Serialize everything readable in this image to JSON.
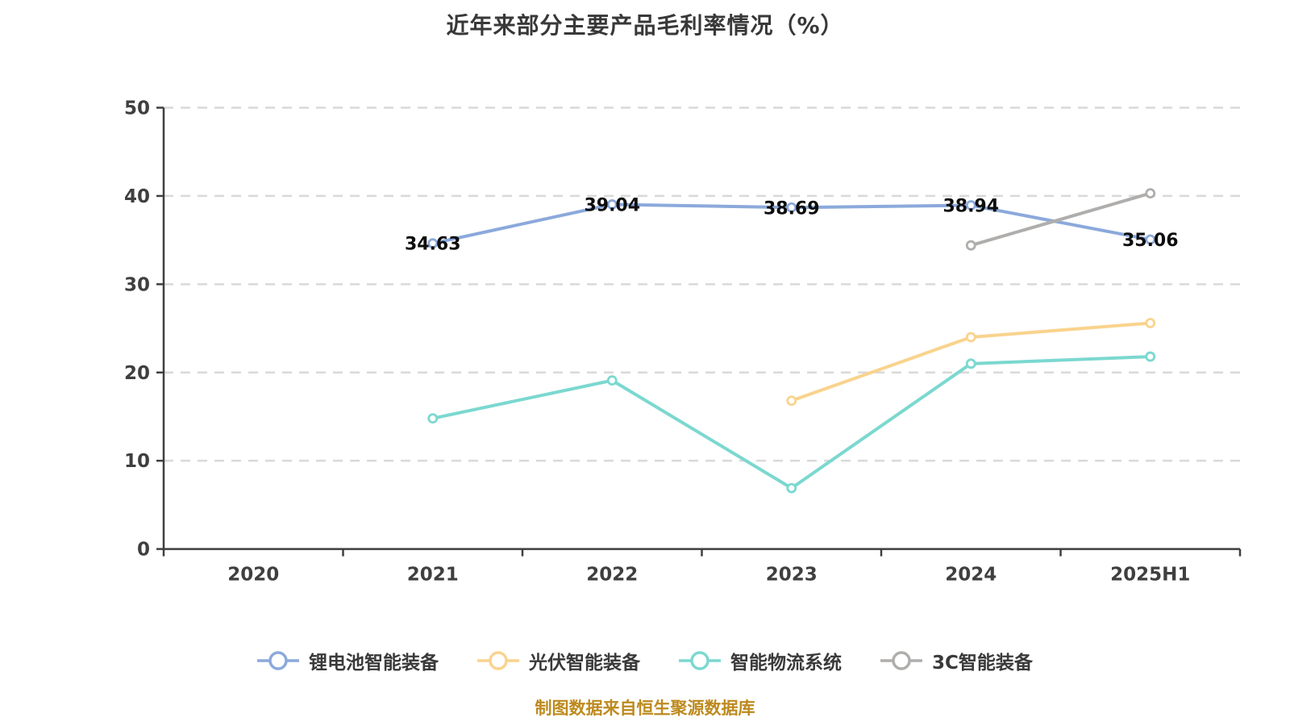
{
  "title": "近年来部分主要产品毛利率情况（%）",
  "footer": "制图数据来自恒生聚源数据库",
  "colors": {
    "series_blue": "#8BA9DB",
    "series_yellow": "#F9D38D",
    "series_teal": "#7BD8D0",
    "series_gray": "#AFAEAC",
    "grid": "#D9D9D9",
    "axis": "#3F3F3F",
    "tick_label": "#3F3F3F",
    "data_label": "#0d0d0d",
    "marker_fill": "#ffffff",
    "title_color": "#383838",
    "footer_color": "#BD8A1E",
    "background": "#ffffff"
  },
  "chart_data": {
    "type": "line",
    "title": "近年来部分主要产品毛利率情况（%）",
    "xlabel": "",
    "ylabel": "",
    "categories": [
      "2020",
      "2021",
      "2022",
      "2023",
      "2024",
      "2025H1"
    ],
    "series": [
      {
        "name": "锂电池智能装备",
        "color": "#8BA9DB",
        "values": [
          null,
          34.63,
          39.04,
          38.69,
          38.94,
          35.06
        ],
        "labels": [
          null,
          "34.63",
          "39.04",
          "38.69",
          "38.94",
          "35.06"
        ],
        "show_labels": true
      },
      {
        "name": "光伏智能装备",
        "color": "#F9D38D",
        "values": [
          null,
          null,
          null,
          16.8,
          24.0,
          25.6
        ],
        "labels": null,
        "show_labels": false
      },
      {
        "name": "智能物流系统",
        "color": "#7BD8D0",
        "values": [
          null,
          14.8,
          19.1,
          6.9,
          21.0,
          21.8
        ],
        "labels": null,
        "show_labels": false
      },
      {
        "name": "3C智能装备",
        "color": "#AFAEAC",
        "values": [
          null,
          null,
          null,
          null,
          34.4,
          40.3
        ],
        "labels": null,
        "show_labels": false
      }
    ],
    "ylim": [
      0,
      50
    ],
    "ytick_step": 10,
    "yticks": [
      "0",
      "10",
      "20",
      "30",
      "40",
      "50"
    ],
    "grid": "horizontal-dashed",
    "legend_position": "bottom",
    "legend": [
      "锂电池智能装备",
      "光伏智能装备",
      "智能物流系统",
      "3C智能装备"
    ]
  }
}
